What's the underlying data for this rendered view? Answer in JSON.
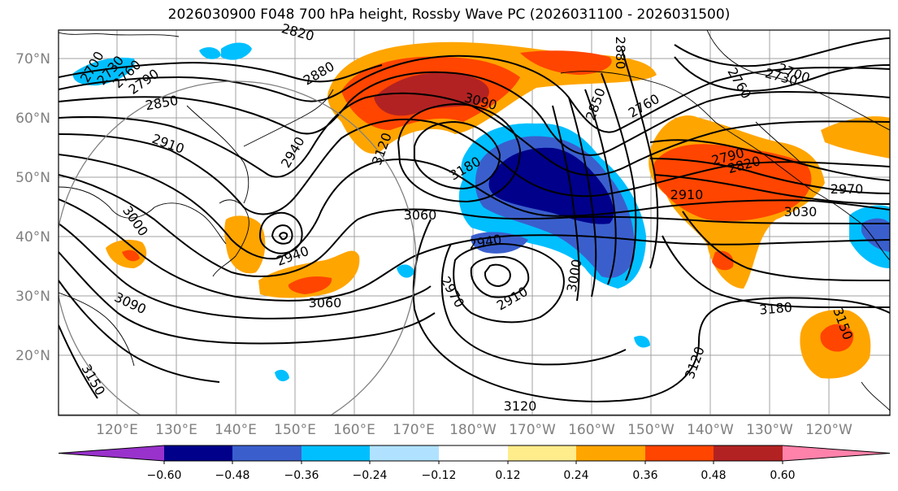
{
  "title": "2026030900 F048 700 hPa height, Rossby Wave PC (2026031100 - 2026031500)",
  "lat_labels": [
    "70°N",
    "60°N",
    "50°N",
    "40°N",
    "30°N",
    "20°N"
  ],
  "lon_labels": [
    "120°E",
    "130°E",
    "140°E",
    "150°E",
    "160°E",
    "170°E",
    "180°W",
    "170°W",
    "160°W",
    "150°W",
    "140°W",
    "130°W",
    "120°W"
  ],
  "colorbar": {
    "ticks": [
      "−0.60",
      "−0.48",
      "−0.36",
      "−0.24",
      "−0.12",
      "0.12",
      "0.24",
      "0.36",
      "0.48",
      "0.60"
    ],
    "colors": [
      "#9932cc",
      "#00008b",
      "#3a5fcd",
      "#00bfff",
      "#b0e2ff",
      "#ffffff",
      "#ffec8b",
      "#ffa500",
      "#ff4500",
      "#b22222",
      "#ff82ab"
    ]
  },
  "contour_labels": {
    "c2700": "2700",
    "c2730": "2730",
    "c2760": "2760",
    "c2790": "2790",
    "c2820": "2820",
    "c2850": "2850",
    "c2880": "2880",
    "c2910": "2910",
    "c2940": "2940",
    "c2970": "2970",
    "c3000": "3000",
    "c3030": "3030",
    "c3060": "3060",
    "c3090": "3090",
    "c3120": "3120",
    "c3150": "3150",
    "c3180": "3180"
  }
}
